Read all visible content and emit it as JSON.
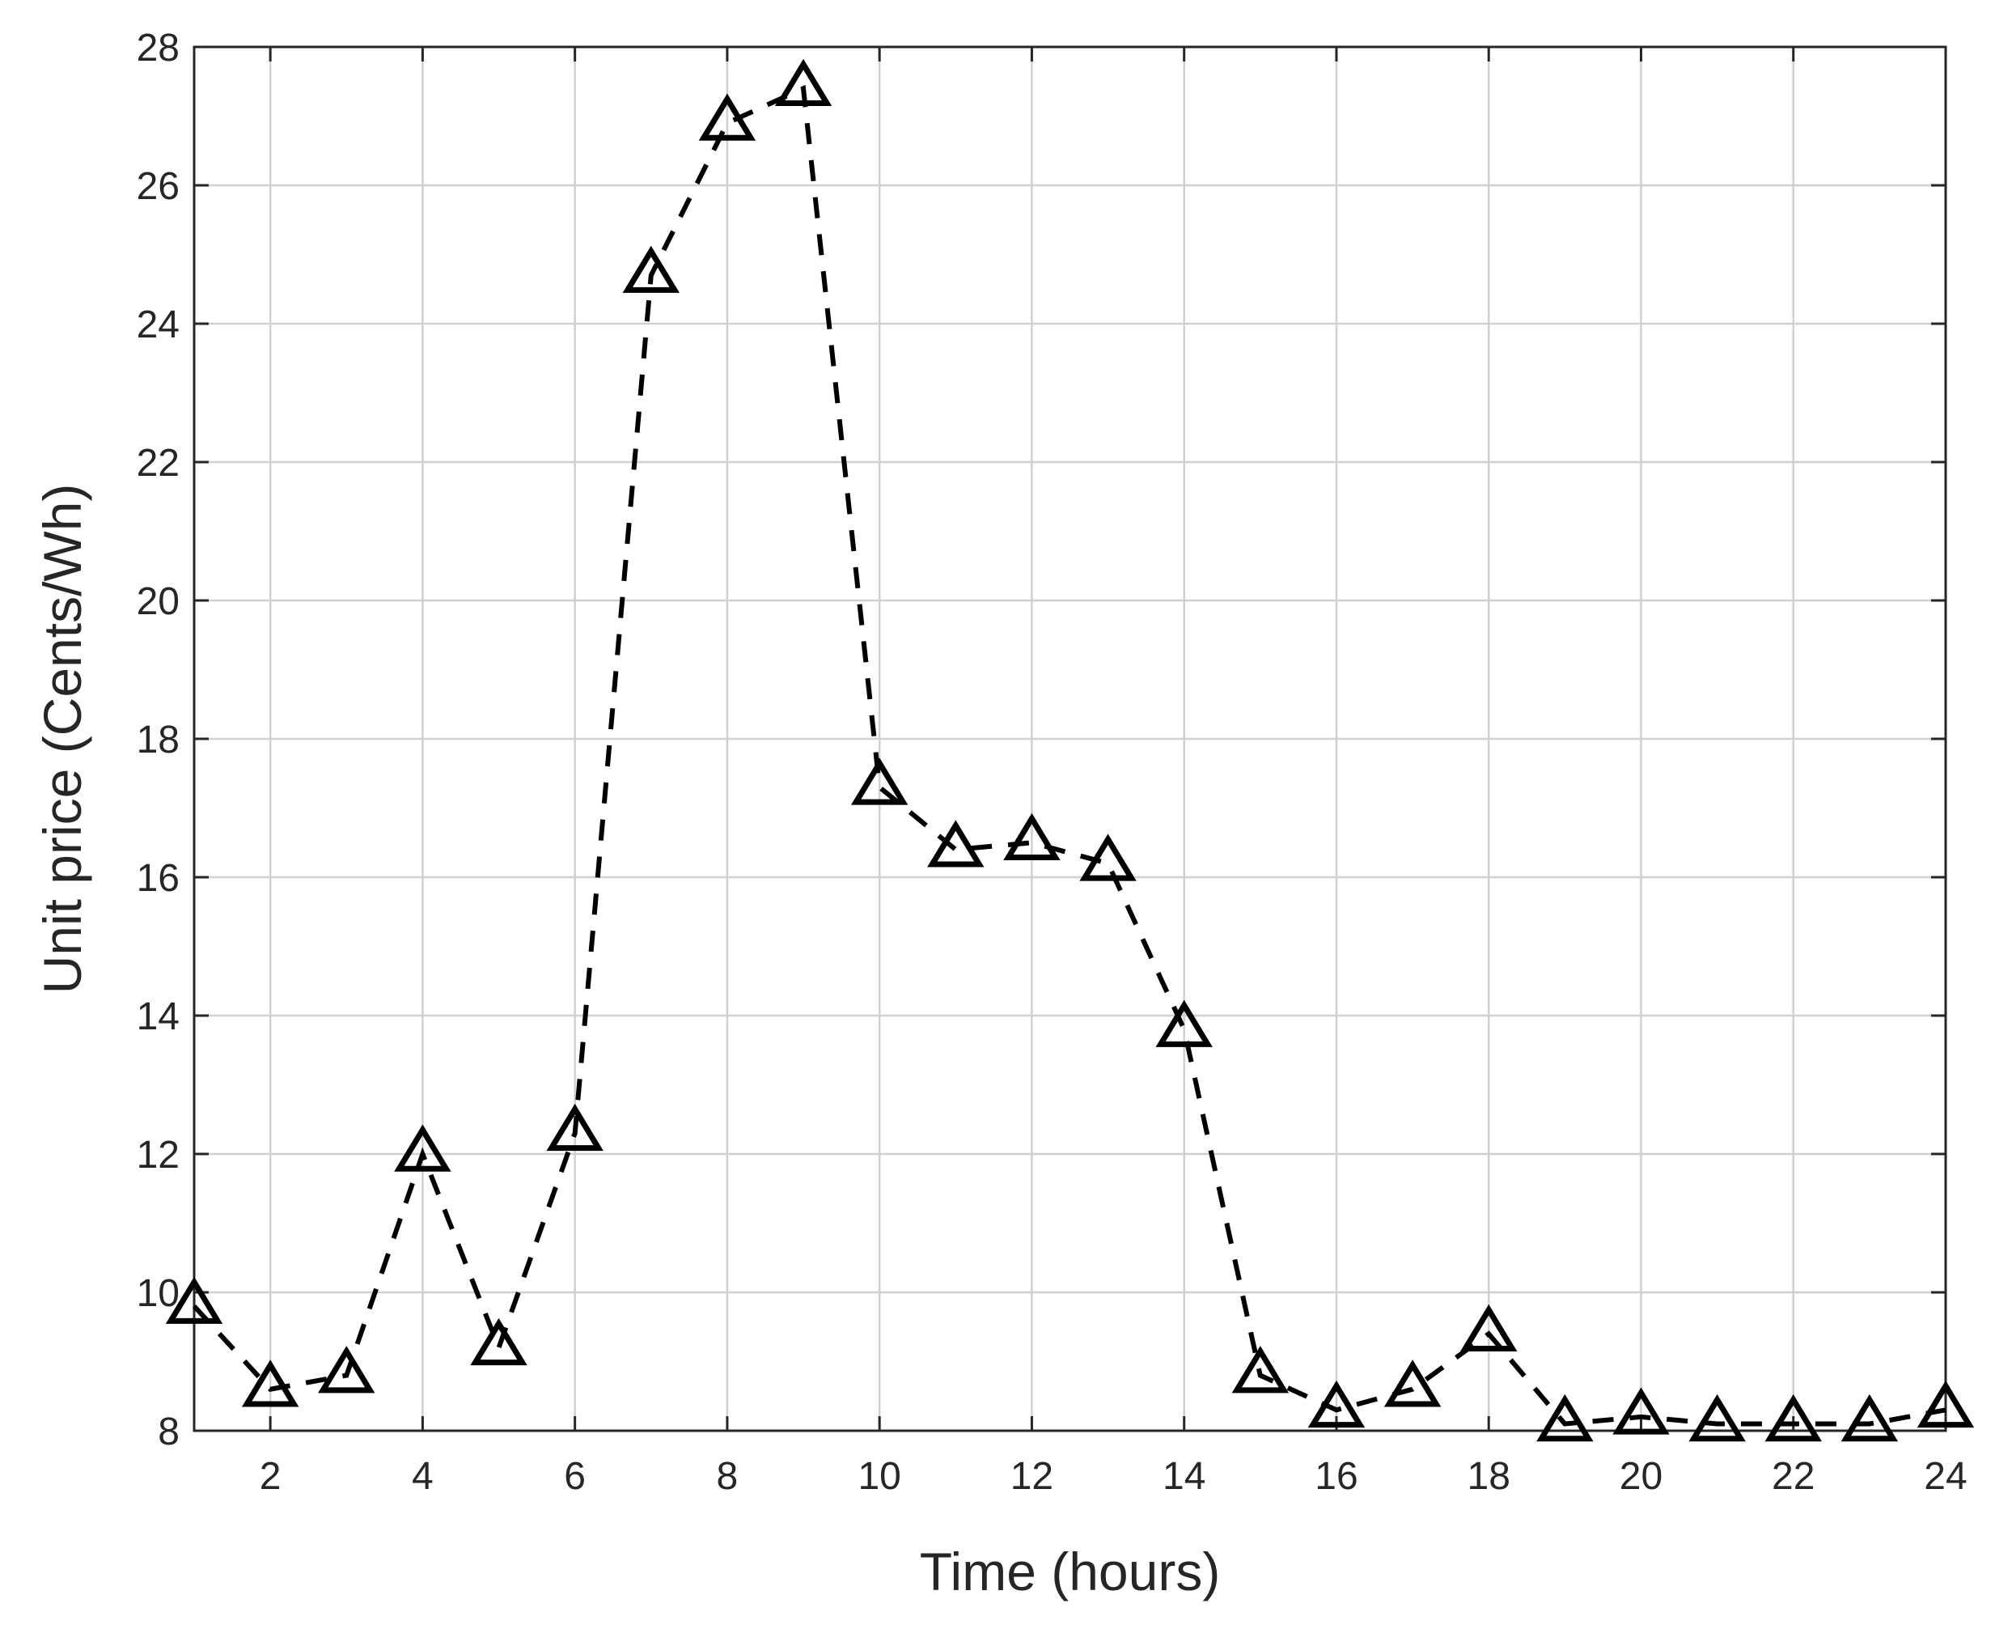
{
  "chart_data": {
    "type": "line",
    "xlabel": "Time (hours)",
    "ylabel": "Unit price (Cents/Wh)",
    "xlim": [
      1,
      24
    ],
    "ylim": [
      8,
      28
    ],
    "xticks": [
      2,
      4,
      6,
      8,
      10,
      12,
      14,
      16,
      18,
      20,
      22,
      24
    ],
    "yticks": [
      8,
      10,
      12,
      14,
      16,
      18,
      20,
      22,
      24,
      26,
      28
    ],
    "grid": true,
    "series": [
      {
        "marker": "triangle",
        "line_style": "dashed",
        "color": "#000000",
        "x": [
          1,
          2,
          3,
          4,
          5,
          6,
          7,
          8,
          9,
          10,
          11,
          12,
          13,
          14,
          15,
          16,
          17,
          18,
          19,
          20,
          21,
          22,
          23,
          24
        ],
        "values": [
          9.8,
          8.6,
          8.8,
          12.0,
          9.2,
          12.3,
          24.7,
          26.9,
          27.4,
          17.3,
          16.4,
          16.5,
          16.2,
          13.8,
          8.8,
          8.3,
          8.6,
          9.4,
          8.1,
          8.2,
          8.1,
          8.1,
          8.1,
          8.3
        ]
      }
    ]
  }
}
